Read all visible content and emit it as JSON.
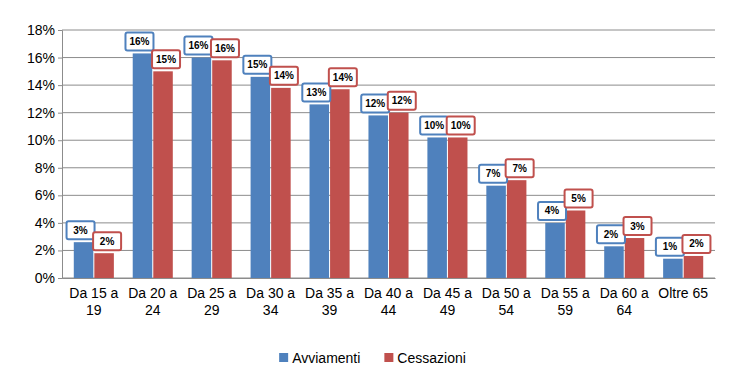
{
  "chart_data": {
    "type": "bar",
    "categories": [
      "Da 15 a 19",
      "Da 20 a 24",
      "Da 25 a 29",
      "Da 30 a 34",
      "Da 35 a 39",
      "Da 40 a 44",
      "Da 45 a 49",
      "Da 50 a 54",
      "Da 55 a 59",
      "Da 60 a 64",
      "Oltre 65"
    ],
    "series": [
      {
        "name": "Avviamenti",
        "color": "#4f81bd",
        "values": [
          2.6,
          16.3,
          16.0,
          14.6,
          12.6,
          11.8,
          10.2,
          6.7,
          4.0,
          2.3,
          1.4
        ],
        "value_labels": [
          "3%",
          "16%",
          "16%",
          "15%",
          "13%",
          "12%",
          "10%",
          "7%",
          "4%",
          "2%",
          "1%"
        ]
      },
      {
        "name": "Cessazioni",
        "color": "#c0504d",
        "values": [
          1.8,
          15.0,
          15.8,
          13.8,
          13.7,
          12.0,
          10.2,
          7.1,
          4.9,
          2.9,
          1.6
        ],
        "value_labels": [
          "2%",
          "15%",
          "16%",
          "14%",
          "14%",
          "12%",
          "10%",
          "7%",
          "5%",
          "3%",
          "2%"
        ]
      }
    ],
    "ylim": [
      0,
      18
    ],
    "yticks": [
      {
        "value": 0,
        "label": "0%"
      },
      {
        "value": 2,
        "label": "2%"
      },
      {
        "value": 4,
        "label": "4%"
      },
      {
        "value": 6,
        "label": "6%"
      },
      {
        "value": 8,
        "label": "8%"
      },
      {
        "value": 10,
        "label": "10%"
      },
      {
        "value": 12,
        "label": "12%"
      },
      {
        "value": 14,
        "label": "14%"
      },
      {
        "value": 16,
        "label": "16%"
      },
      {
        "value": 18,
        "label": "18%"
      }
    ],
    "grid": true,
    "data_labels": true,
    "legend": "bottom"
  }
}
